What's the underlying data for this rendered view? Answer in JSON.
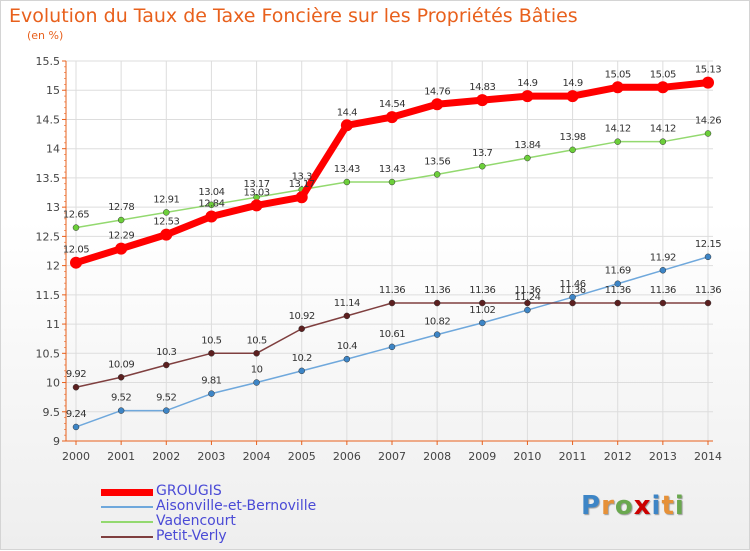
{
  "title": "Evolution du Taux de Taxe Foncière sur les Propriétés Bâties",
  "subtitle": "(en %)",
  "logo": "Proxiti",
  "colors": {
    "title": "#e8601c",
    "axis": "#e8601c",
    "grid": "#dddddd",
    "legend_text": "#4a4ad6"
  },
  "chart_data": {
    "type": "line",
    "x": [
      "2000",
      "2001",
      "2002",
      "2003",
      "2004",
      "2005",
      "2006",
      "2007",
      "2008",
      "2009",
      "2010",
      "2011",
      "2012",
      "2013",
      "2014"
    ],
    "ylim": [
      9,
      15.5
    ],
    "yticks": [
      "9",
      "9.5",
      "10",
      "10.5",
      "11",
      "11.5",
      "12",
      "12.5",
      "13",
      "13.5",
      "14",
      "14.5",
      "15",
      "15.5"
    ],
    "grid": true,
    "legend_position": "bottom-left",
    "series": [
      {
        "name": "GROUGIS",
        "color": "#ff0000",
        "marker": "#ff0000",
        "width": 7,
        "values": [
          12.05,
          12.29,
          12.53,
          12.84,
          13.03,
          13.17,
          14.4,
          14.54,
          14.76,
          14.83,
          14.9,
          14.9,
          15.05,
          15.05,
          15.13
        ],
        "labels": [
          "12.05",
          "12.29",
          "12.53",
          "12.84",
          "13.03",
          "13.17",
          "14.4",
          "14.54",
          "14.76",
          "14.83",
          "14.9",
          "14.9",
          "15.05",
          "15.05",
          "15.13"
        ]
      },
      {
        "name": "Aisonville-et-Bernoville",
        "color": "#6fa8dc",
        "marker": "#3d85c6",
        "width": 1.5,
        "values": [
          9.24,
          9.52,
          9.52,
          9.81,
          10,
          10.2,
          10.4,
          10.61,
          10.82,
          11.02,
          11.24,
          11.46,
          11.69,
          11.92,
          12.15
        ],
        "labels": [
          "9.24",
          "9.52",
          "9.52",
          "9.81",
          "10",
          "10.2",
          "10.4",
          "10.61",
          "10.82",
          "11.02",
          "11.24",
          "11.46",
          "11.69",
          "11.92",
          "12.15"
        ]
      },
      {
        "name": "Vadencourt",
        "color": "#93d96f",
        "marker": "#6ccf3a",
        "width": 1.5,
        "values": [
          12.65,
          12.78,
          12.91,
          13.04,
          13.17,
          13.3,
          13.43,
          13.43,
          13.56,
          13.7,
          13.84,
          13.98,
          14.12,
          14.12,
          14.26
        ],
        "labels": [
          "12.65",
          "12.78",
          "12.91",
          "13.04",
          "13.17",
          "13.3",
          "13.43",
          "13.43",
          "13.56",
          "13.7",
          "13.84",
          "13.98",
          "14.12",
          "14.12",
          "14.26"
        ]
      },
      {
        "name": "Petit-Verly",
        "color": "#7f3f3f",
        "marker": "#5c1f1f",
        "width": 1.5,
        "values": [
          9.92,
          10.09,
          10.3,
          10.5,
          10.5,
          10.92,
          11.14,
          11.36,
          11.36,
          11.36,
          11.36,
          11.36,
          11.36,
          11.36,
          11.36
        ],
        "labels": [
          "9.92",
          "10.09",
          "10.3",
          "10.5",
          "10.5",
          "10.92",
          "11.14",
          "11.36",
          "11.36",
          "11.36",
          "11.36",
          "11.36",
          "11.36",
          "11.36",
          "11.36"
        ]
      }
    ]
  }
}
